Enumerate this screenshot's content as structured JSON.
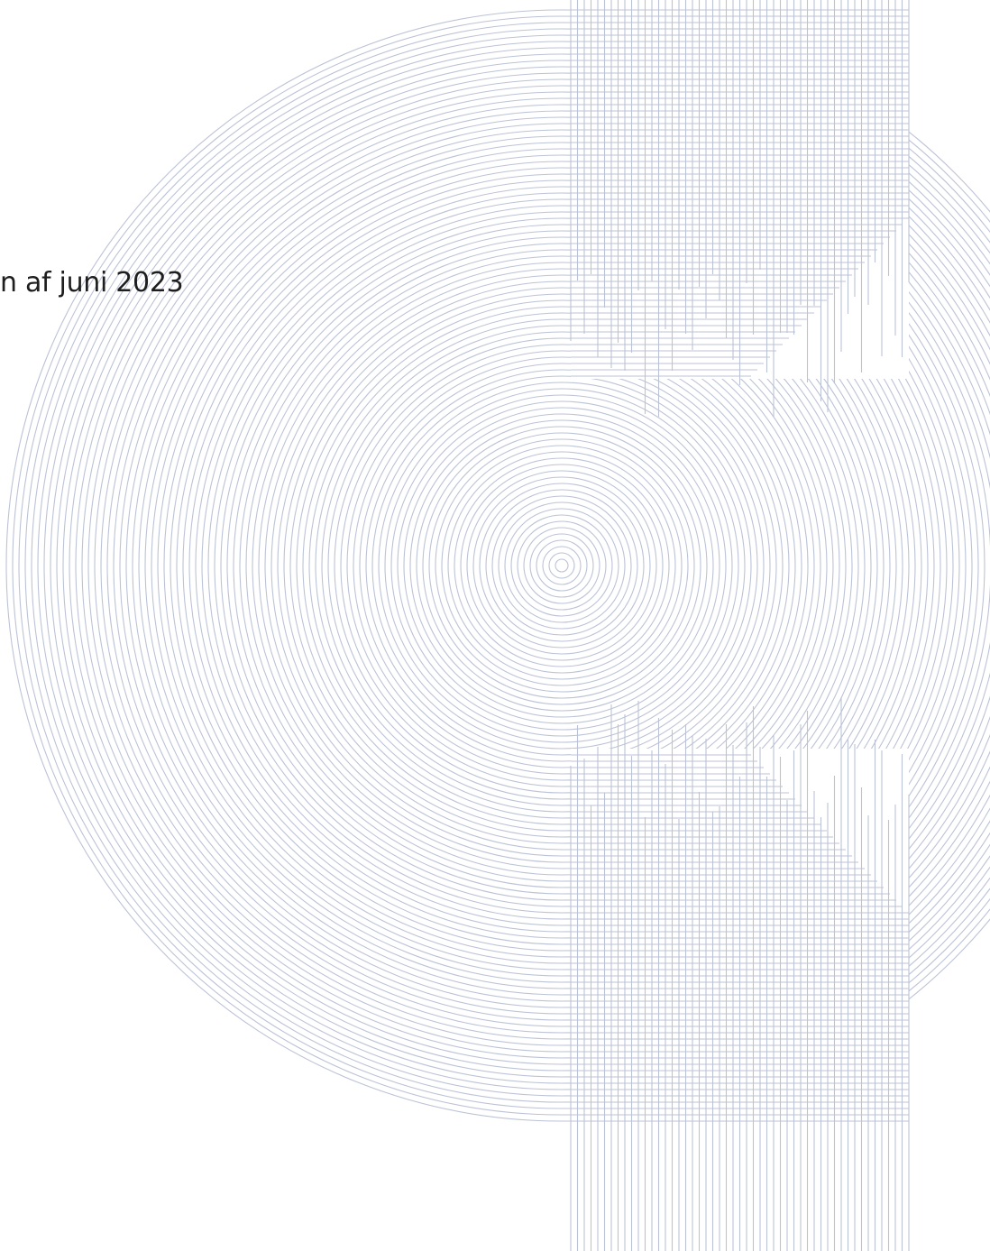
{
  "document": {
    "text": "n af juni 2023"
  }
}
